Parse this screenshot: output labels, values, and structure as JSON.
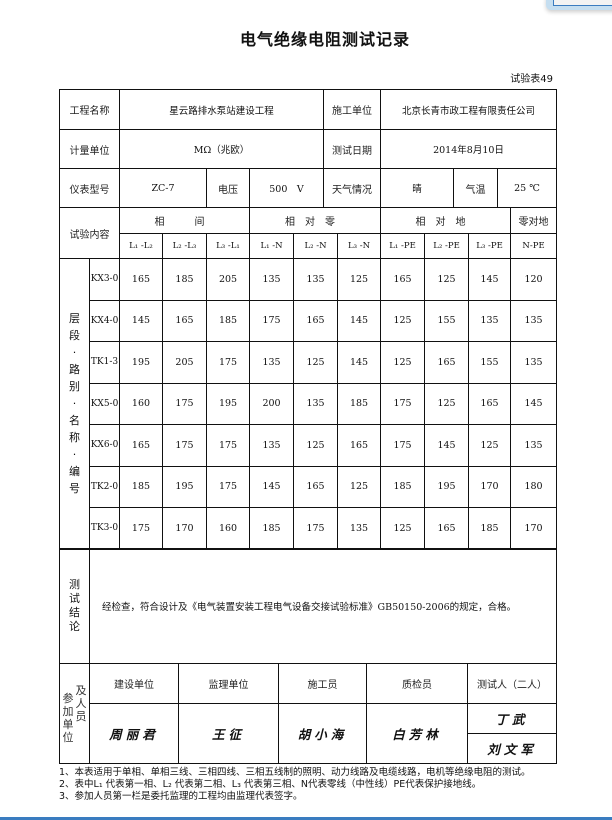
{
  "title": "电气绝缘电阻测试记录",
  "form_no": "试验表49",
  "info": {
    "project_label": "工程名称",
    "project": "星云路排水泵站建设工程",
    "contractor_label": "施工单位",
    "contractor": "北京长青市政工程有限责任公司",
    "unit_label": "计量单位",
    "unit": "MΩ（兆欧）",
    "date_label": "测试日期",
    "date": "2014年8月10日",
    "meter_label": "仪表型号",
    "meter": "ZC-7",
    "voltage_label": "电压",
    "voltage": "500　V",
    "weather_label": "天气情况",
    "weather": "晴",
    "temp_label": "气温",
    "temp": "25 ℃"
  },
  "table": {
    "content_label": "试验内容",
    "groups": [
      "相　间",
      "相对零",
      "相对地",
      "零对地"
    ],
    "columns": [
      "L₁ -L₂",
      "L₂ -L₃",
      "L₃ -L₁",
      "L₁ -N",
      "L₂ -N",
      "L₃ -N",
      "L₁ -PE",
      "L₂ -PE",
      "L₃ -PE",
      "N-PE"
    ],
    "row_group_label": "层段·路别·名称·编号",
    "rows": [
      {
        "name": "KX3-0",
        "values": [
          "165",
          "185",
          "205",
          "135",
          "135",
          "125",
          "165",
          "125",
          "145",
          "120"
        ]
      },
      {
        "name": "KX4-0",
        "values": [
          "145",
          "165",
          "185",
          "175",
          "165",
          "145",
          "125",
          "155",
          "135",
          "135"
        ]
      },
      {
        "name": "TK1-3",
        "values": [
          "195",
          "205",
          "175",
          "135",
          "125",
          "145",
          "125",
          "165",
          "155",
          "135"
        ]
      },
      {
        "name": "KX5-0",
        "values": [
          "160",
          "175",
          "195",
          "200",
          "135",
          "185",
          "175",
          "125",
          "165",
          "145"
        ]
      },
      {
        "name": "KX6-0",
        "values": [
          "165",
          "175",
          "175",
          "135",
          "125",
          "165",
          "175",
          "145",
          "125",
          "135"
        ]
      },
      {
        "name": "TK2-0",
        "values": [
          "185",
          "195",
          "175",
          "145",
          "165",
          "125",
          "185",
          "195",
          "170",
          "180"
        ]
      },
      {
        "name": "TK3-0",
        "values": [
          "175",
          "170",
          "160",
          "185",
          "175",
          "135",
          "125",
          "165",
          "185",
          "170"
        ]
      }
    ]
  },
  "conclusion": {
    "label": "测试结论",
    "text": "经检查，符合设计及《电气装置安装工程电气设备交接试验标准》GB50150-2006的规定，合格。"
  },
  "participants": {
    "label_a": "参加单位",
    "label_b": "及人员",
    "headers": [
      "建设单位",
      "监理单位",
      "施工员",
      "质检员",
      "测试人（二人）"
    ],
    "signatures": [
      "周丽君",
      "王征",
      "胡小海",
      "白芳林"
    ],
    "testers": [
      "丁武",
      "刘文军"
    ]
  },
  "notes": [
    "1、本表适用于单相、单相三线、三相四线、三相五线制的照明、动力线路及电缆线路，电机等绝缘电阻的测试。",
    "2、表中L₁ 代表第一相、L₂ 代表第二相、L₃ 代表第三相、N代表零线（中性线）PE代表保护接地线。",
    "3、参加人员第一栏是委托监理的工程均由监理代表签字。"
  ]
}
